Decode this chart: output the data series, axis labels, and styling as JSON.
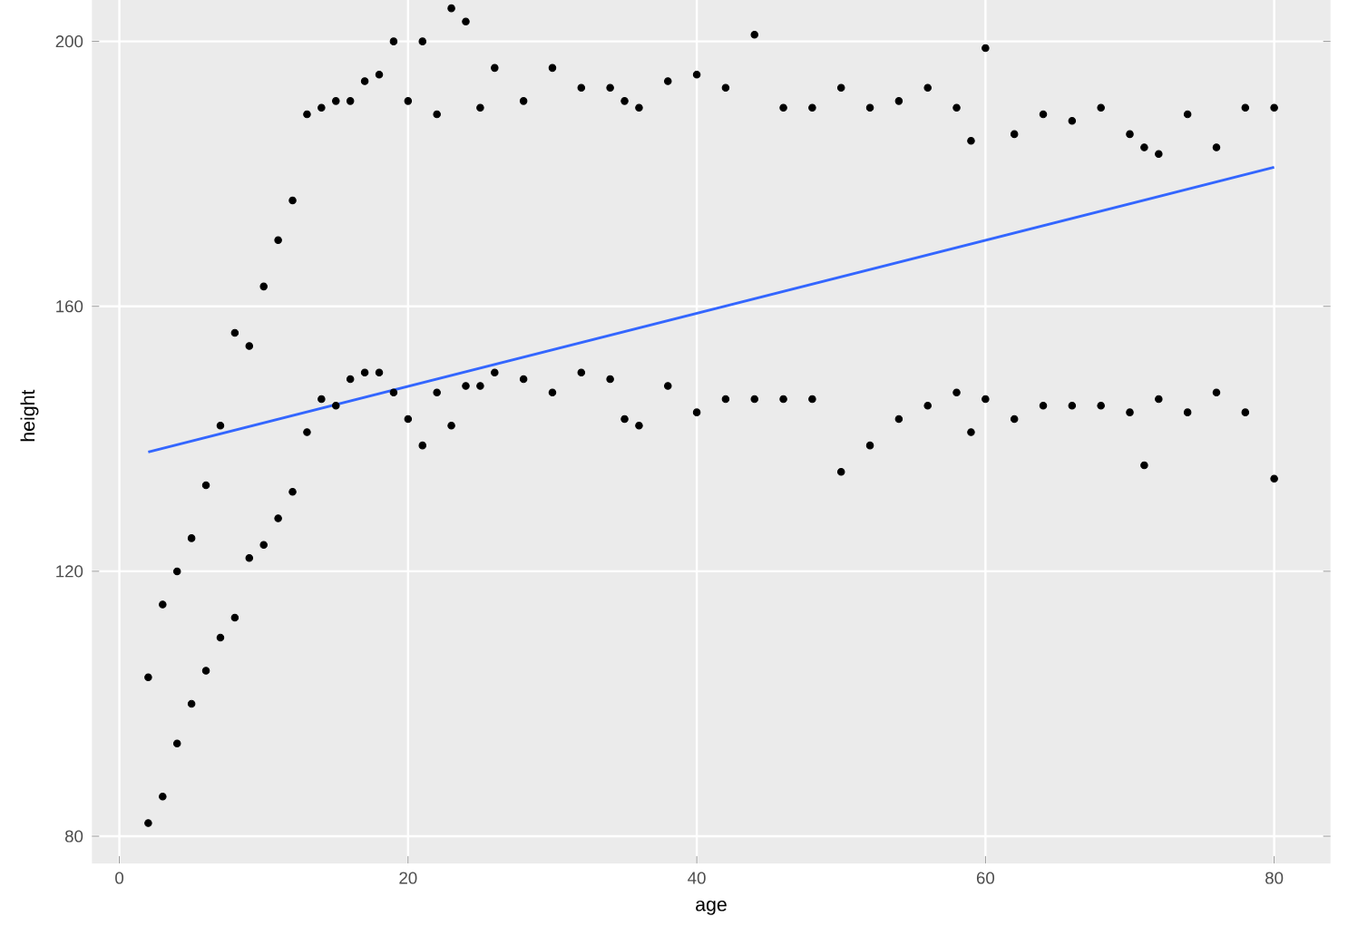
{
  "chart_data": {
    "type": "scatter",
    "xlabel": "age",
    "ylabel": "height",
    "xlim": [
      -1.9,
      83.9
    ],
    "ylim": [
      75.9,
      211
    ],
    "xticks": [
      0,
      20,
      40,
      60,
      80
    ],
    "yticks": [
      80,
      120,
      160,
      200
    ],
    "grid": true,
    "series": [
      {
        "marker": "circle",
        "color": "#000000",
        "x": [
          2,
          2,
          3,
          3,
          4,
          4,
          5,
          5,
          6,
          6,
          7,
          7,
          8,
          8,
          9,
          9,
          10,
          10,
          11,
          11,
          12,
          12,
          13,
          13,
          14,
          14,
          15,
          15,
          16,
          16,
          17,
          17,
          18,
          18,
          19,
          19,
          20,
          20,
          21,
          21,
          22,
          22,
          23,
          23,
          24,
          24,
          25,
          25,
          26,
          26,
          28,
          28,
          30,
          30,
          32,
          32,
          34,
          34,
          35,
          35,
          36,
          36,
          38,
          38,
          40,
          40,
          42,
          42,
          44,
          44,
          46,
          46,
          48,
          48,
          50,
          50,
          52,
          52,
          54,
          54,
          56,
          56,
          58,
          58,
          59,
          59,
          60,
          60,
          62,
          62,
          64,
          64,
          66,
          66,
          68,
          68,
          70,
          70,
          71,
          71,
          72,
          72,
          74,
          74,
          76,
          76,
          78,
          78,
          80,
          80
        ],
        "values": [
          82,
          104,
          86,
          115,
          94,
          120,
          100,
          125,
          105,
          133,
          110,
          142,
          113,
          156,
          122,
          154,
          124,
          163,
          128,
          170,
          132,
          176,
          141,
          189,
          146,
          190,
          145,
          191,
          149,
          191,
          150,
          194,
          150,
          195,
          147,
          200,
          143,
          191,
          139,
          200,
          147,
          189,
          142,
          205,
          148,
          203,
          148,
          190,
          150,
          196,
          149,
          191,
          147,
          196,
          150,
          193,
          149,
          193,
          143,
          191,
          142,
          190,
          148,
          194,
          144,
          195,
          146,
          193,
          146,
          201,
          146,
          190,
          146,
          190,
          135,
          193,
          139,
          190,
          143,
          191,
          145,
          193,
          147,
          190,
          141,
          185,
          146,
          199,
          143,
          186,
          145,
          189,
          145,
          188,
          145,
          190,
          144,
          186,
          136,
          184,
          146,
          183,
          144,
          189,
          147,
          184,
          144,
          190,
          134,
          190
        ]
      },
      {
        "type": "line",
        "marker": "none",
        "color": "#3366ff",
        "x": [
          2,
          80
        ],
        "values": [
          138,
          181
        ]
      }
    ]
  }
}
